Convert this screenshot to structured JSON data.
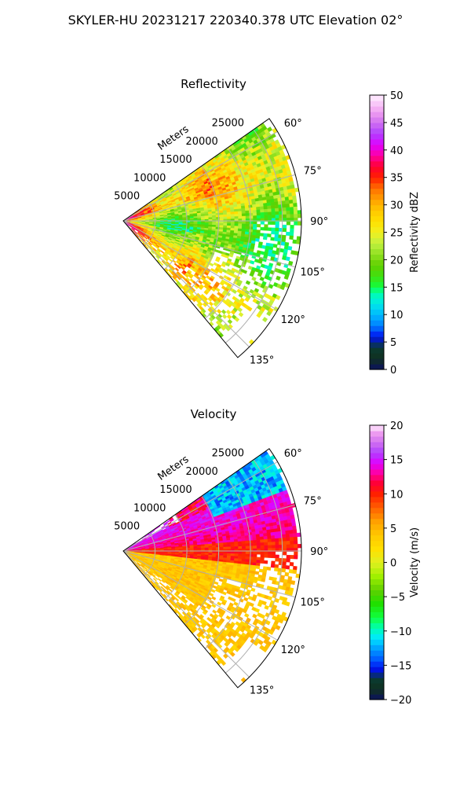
{
  "figure": {
    "suptitle": "SKYLER-HU  20231217  220340.378 UTC Elevation 02°"
  },
  "chart_data": [
    {
      "type": "heatmap",
      "subtype": "polar-sector",
      "title": "Reflectivity",
      "radial_label": "Meters",
      "radial_ticks": [
        "5000",
        "10000",
        "15000",
        "20000",
        "25000"
      ],
      "angle_ticks": [
        "60°",
        "75°",
        "90°",
        "105°",
        "120°",
        "135°"
      ],
      "angle_range_deg": [
        55,
        140
      ],
      "range_max_m": 28000,
      "colorbar": {
        "label": "Reflectivity dBZ",
        "range": [
          0,
          50
        ],
        "ticks": [
          "0",
          "5",
          "10",
          "15",
          "20",
          "25",
          "30",
          "35",
          "40",
          "45",
          "50"
        ]
      },
      "field_summary": "Dominant values 20–28 dBZ (yellow-green); near-range cells 30–38 dBZ (orange-red) along the 60°–110° edge; scattered 15–20 dBZ echoes near the outer range"
    },
    {
      "type": "heatmap",
      "subtype": "polar-sector",
      "title": "Velocity",
      "radial_label": "Meters",
      "radial_ticks": [
        "5000",
        "10000",
        "15000",
        "20000",
        "25000"
      ],
      "angle_ticks": [
        "60°",
        "75°",
        "90°",
        "105°",
        "120°",
        "135°"
      ],
      "angle_range_deg": [
        55,
        140
      ],
      "range_max_m": 28000,
      "colorbar": {
        "label": "Velocity (m/s)",
        "range": [
          -20,
          20
        ],
        "ticks": [
          "−20",
          "−15",
          "−10",
          "−5",
          "0",
          "5",
          "10",
          "15",
          "20"
        ]
      },
      "field_summary": "Outbound 12–18 m/s (purple/magenta) at 60°–85°; 8–12 m/s (red) along 85°–95°; 2–6 m/s (yellow) from 95° to 140°; inbound −10 to −15 m/s (cyan) at far range near 55°–70°"
    }
  ],
  "colormaps": {
    "reflectivity_stops": [
      [
        0,
        "#0a1060"
      ],
      [
        2,
        "#103020"
      ],
      [
        4,
        "#0a3a30"
      ],
      [
        6,
        "#0010f0"
      ],
      [
        8,
        "#0080ff"
      ],
      [
        10,
        "#00b8ff"
      ],
      [
        12,
        "#00e8e8"
      ],
      [
        14,
        "#00ffb0"
      ],
      [
        15,
        "#10ff40"
      ],
      [
        17,
        "#40e010"
      ],
      [
        19,
        "#60d000"
      ],
      [
        21,
        "#90e020"
      ],
      [
        23,
        "#c0f040"
      ],
      [
        25,
        "#f0f020"
      ],
      [
        27,
        "#ffe000"
      ],
      [
        29,
        "#ffc800"
      ],
      [
        31,
        "#ffa000"
      ],
      [
        33,
        "#ff7000"
      ],
      [
        35,
        "#ff2000"
      ],
      [
        37,
        "#ff0030"
      ],
      [
        39,
        "#ff00a0"
      ],
      [
        41,
        "#e000ff"
      ],
      [
        43,
        "#b040ff"
      ],
      [
        45,
        "#d070f0"
      ],
      [
        47,
        "#f0a0f0"
      ],
      [
        50,
        "#fff0ff"
      ]
    ],
    "velocity_stops": [
      [
        -20,
        "#0a1060"
      ],
      [
        -18.5,
        "#103020"
      ],
      [
        -17,
        "#0a3a30"
      ],
      [
        -15.5,
        "#0010f0"
      ],
      [
        -14,
        "#0060ff"
      ],
      [
        -12.5,
        "#00a0ff"
      ],
      [
        -11,
        "#00e8ff"
      ],
      [
        -9.5,
        "#00ffb0"
      ],
      [
        -8,
        "#10ff40"
      ],
      [
        -6,
        "#20e000"
      ],
      [
        -4,
        "#60d000"
      ],
      [
        -2,
        "#a0f000"
      ],
      [
        0,
        "#e0f020"
      ],
      [
        2,
        "#ffe000"
      ],
      [
        4,
        "#ffc800"
      ],
      [
        6,
        "#ffa000"
      ],
      [
        8,
        "#ff6000"
      ],
      [
        10,
        "#ff2000"
      ],
      [
        11.5,
        "#ff0030"
      ],
      [
        13,
        "#ff00a0"
      ],
      [
        14.5,
        "#e000ff"
      ],
      [
        16,
        "#b040ff"
      ],
      [
        17.5,
        "#d070f0"
      ],
      [
        19,
        "#f0a0f0"
      ],
      [
        20,
        "#fff0ff"
      ]
    ]
  }
}
